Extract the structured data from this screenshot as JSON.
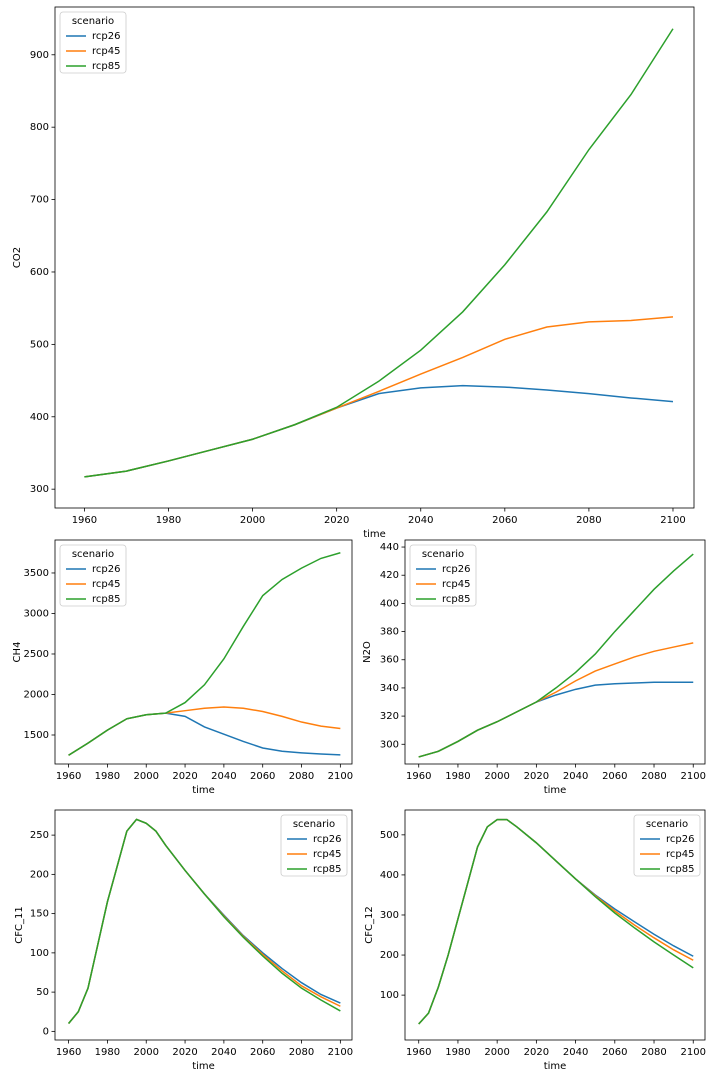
{
  "chart_data": [
    {
      "type": "line",
      "xlabel": "time",
      "ylabel": "CO2",
      "legend_title": "scenario",
      "legend_loc": "upper left",
      "x": [
        1960,
        1970,
        1980,
        1990,
        2000,
        2010,
        2020,
        2030,
        2040,
        2050,
        2060,
        2070,
        2080,
        2090,
        2100
      ],
      "series": [
        {
          "name": "rcp26",
          "color": "#1f77b4",
          "values": [
            317,
            325,
            339,
            354,
            369,
            389,
            412,
            432,
            440,
            443,
            441,
            437,
            432,
            426,
            421
          ]
        },
        {
          "name": "rcp45",
          "color": "#ff7f0e",
          "values": [
            317,
            325,
            339,
            354,
            369,
            389,
            412,
            435,
            459,
            482,
            507,
            524,
            531,
            533,
            538
          ]
        },
        {
          "name": "rcp85",
          "color": "#2ca02c",
          "values": [
            317,
            325,
            339,
            354,
            369,
            389,
            413,
            449,
            492,
            545,
            610,
            683,
            769,
            845,
            936
          ]
        }
      ],
      "xlim": [
        1953,
        2105
      ],
      "ylim": [
        274,
        966
      ],
      "xticks": [
        1960,
        1980,
        2000,
        2020,
        2040,
        2060,
        2080,
        2100
      ],
      "yticks": [
        300,
        400,
        500,
        600,
        700,
        800,
        900
      ]
    },
    {
      "type": "line",
      "xlabel": "time",
      "ylabel": "CH4",
      "legend_title": "scenario",
      "legend_loc": "upper left",
      "x": [
        1960,
        1970,
        1980,
        1990,
        2000,
        2010,
        2020,
        2030,
        2040,
        2050,
        2060,
        2070,
        2080,
        2090,
        2100
      ],
      "series": [
        {
          "name": "rcp26",
          "color": "#1f77b4",
          "values": [
            1250,
            1400,
            1560,
            1700,
            1750,
            1770,
            1730,
            1600,
            1510,
            1420,
            1340,
            1300,
            1280,
            1265,
            1255
          ]
        },
        {
          "name": "rcp45",
          "color": "#ff7f0e",
          "values": [
            1250,
            1400,
            1560,
            1700,
            1750,
            1770,
            1800,
            1830,
            1845,
            1830,
            1790,
            1730,
            1660,
            1610,
            1580
          ]
        },
        {
          "name": "rcp85",
          "color": "#2ca02c",
          "values": [
            1250,
            1400,
            1560,
            1700,
            1750,
            1770,
            1900,
            2120,
            2440,
            2840,
            3220,
            3420,
            3560,
            3680,
            3750
          ]
        }
      ],
      "xlim": [
        1953,
        2106
      ],
      "ylim": [
        1142,
        3907
      ],
      "xticks": [
        1960,
        1980,
        2000,
        2020,
        2040,
        2060,
        2080,
        2100
      ],
      "yticks": [
        1500,
        2000,
        2500,
        3000,
        3500
      ]
    },
    {
      "type": "line",
      "xlabel": "time",
      "ylabel": "N2O",
      "legend_title": "scenario",
      "legend_loc": "upper left",
      "x": [
        1960,
        1970,
        1980,
        1990,
        2000,
        2010,
        2020,
        2030,
        2040,
        2050,
        2060,
        2070,
        2080,
        2090,
        2100
      ],
      "series": [
        {
          "name": "rcp26",
          "color": "#1f77b4",
          "values": [
            291,
            295,
            302,
            310,
            316,
            323,
            330,
            335,
            339,
            342,
            343,
            343.5,
            344,
            344,
            344
          ]
        },
        {
          "name": "rcp45",
          "color": "#ff7f0e",
          "values": [
            291,
            295,
            302,
            310,
            316,
            323,
            330,
            337,
            345,
            352,
            357,
            362,
            366,
            369,
            372
          ]
        },
        {
          "name": "rcp85",
          "color": "#2ca02c",
          "values": [
            291,
            295,
            302,
            310,
            316,
            323,
            330,
            340,
            351,
            364,
            380,
            395,
            410,
            423,
            435
          ]
        }
      ],
      "xlim": [
        1953,
        2106
      ],
      "ylim": [
        286,
        445
      ],
      "xticks": [
        1960,
        1980,
        2000,
        2020,
        2040,
        2060,
        2080,
        2100
      ],
      "yticks": [
        300,
        320,
        340,
        360,
        380,
        400,
        420,
        440
      ]
    },
    {
      "type": "line",
      "xlabel": "time",
      "ylabel": "CFC_11",
      "legend_title": "scenario",
      "legend_loc": "upper right",
      "x": [
        1960,
        1965,
        1970,
        1975,
        1980,
        1985,
        1990,
        1995,
        2000,
        2005,
        2010,
        2020,
        2030,
        2040,
        2050,
        2060,
        2070,
        2080,
        2090,
        2100
      ],
      "series": [
        {
          "name": "rcp26",
          "color": "#1f77b4",
          "values": [
            10,
            25,
            55,
            110,
            165,
            210,
            255,
            270,
            265,
            255,
            237,
            205,
            175,
            148,
            122,
            100,
            80,
            62,
            47,
            36
          ]
        },
        {
          "name": "rcp45",
          "color": "#ff7f0e",
          "values": [
            10,
            25,
            55,
            110,
            165,
            210,
            255,
            270,
            265,
            255,
            237,
            205,
            175,
            147,
            121,
            98,
            77,
            58,
            44,
            32
          ]
        },
        {
          "name": "rcp85",
          "color": "#2ca02c",
          "values": [
            10,
            25,
            55,
            110,
            165,
            210,
            255,
            270,
            265,
            255,
            237,
            205,
            175,
            146,
            120,
            96,
            74,
            55,
            40,
            26
          ]
        }
      ],
      "xlim": [
        1953,
        2106
      ],
      "ylim": [
        -11,
        282
      ],
      "xticks": [
        1960,
        1980,
        2000,
        2020,
        2040,
        2060,
        2080,
        2100
      ],
      "yticks": [
        0,
        50,
        100,
        150,
        200,
        250
      ]
    },
    {
      "type": "line",
      "xlabel": "time",
      "ylabel": "CFC_12",
      "legend_title": "scenario",
      "legend_loc": "upper right",
      "x": [
        1960,
        1965,
        1970,
        1975,
        1980,
        1985,
        1990,
        1995,
        2000,
        2005,
        2010,
        2020,
        2030,
        2040,
        2050,
        2060,
        2070,
        2080,
        2090,
        2100
      ],
      "series": [
        {
          "name": "rcp26",
          "color": "#1f77b4",
          "values": [
            28,
            55,
            120,
            200,
            290,
            380,
            470,
            520,
            538,
            538,
            520,
            480,
            435,
            390,
            350,
            315,
            283,
            252,
            223,
            197
          ]
        },
        {
          "name": "rcp45",
          "color": "#ff7f0e",
          "values": [
            28,
            55,
            120,
            200,
            290,
            380,
            470,
            520,
            538,
            538,
            520,
            480,
            435,
            390,
            348,
            310,
            275,
            243,
            213,
            187
          ]
        },
        {
          "name": "rcp85",
          "color": "#2ca02c",
          "values": [
            28,
            55,
            120,
            200,
            290,
            380,
            470,
            520,
            538,
            538,
            520,
            480,
            435,
            390,
            346,
            305,
            268,
            233,
            200,
            168
          ]
        }
      ],
      "xlim": [
        1953,
        2106
      ],
      "ylim": [
        -12,
        562
      ],
      "xticks": [
        1960,
        1980,
        2000,
        2020,
        2040,
        2060,
        2080,
        2100
      ],
      "yticks": [
        100,
        200,
        300,
        400,
        500
      ]
    }
  ]
}
